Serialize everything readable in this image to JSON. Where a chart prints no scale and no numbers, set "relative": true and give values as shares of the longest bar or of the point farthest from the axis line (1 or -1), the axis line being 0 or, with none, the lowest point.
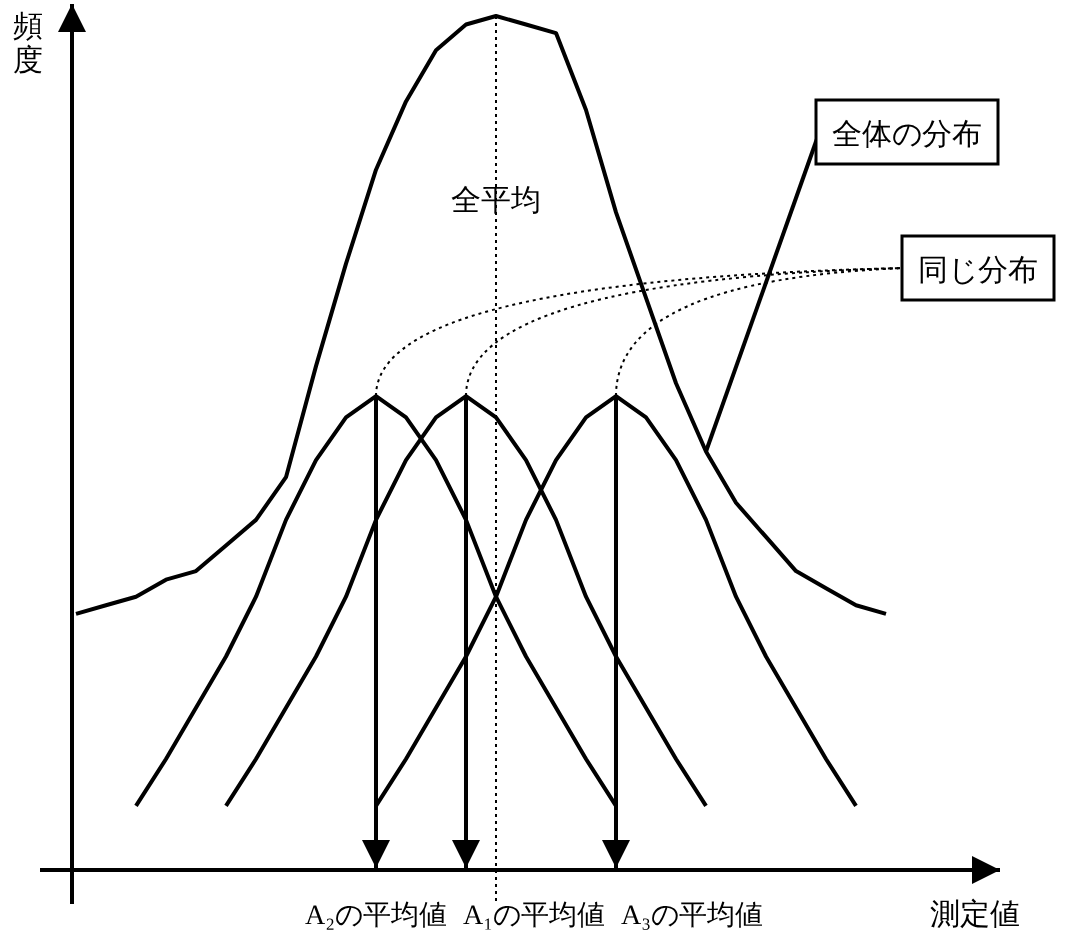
{
  "chart_data": {
    "type": "line",
    "relative": true,
    "xlabel": "測定値",
    "ylabel": "頻度",
    "line_style": "solid",
    "categories": [
      null,
      null,
      null,
      null,
      null,
      null,
      null,
      null,
      null,
      null,
      null,
      null,
      null,
      null,
      null,
      null,
      null,
      null,
      null,
      null,
      null,
      null,
      null,
      null,
      null,
      null,
      null,
      null
    ],
    "series": [
      {
        "color": "#000000",
        "values": [
          0.3,
          0.31,
          0.32,
          0.34,
          0.35,
          0.38,
          0.41,
          0.46,
          0.59,
          0.71,
          0.82,
          0.9,
          0.96,
          0.99,
          1,
          0.99,
          0.98,
          0.89,
          0.77,
          0.67,
          0.57,
          0.49,
          0.43,
          0.39,
          0.35,
          0.33,
          0.31,
          0.3
        ]
      },
      {
        "color": "#000000",
        "values": [
          null,
          null,
          0.075,
          0.13,
          0.19,
          0.25,
          0.32,
          0.41,
          0.48,
          0.53,
          0.555,
          0.53,
          0.48,
          0.41,
          0.32,
          0.25,
          0.19,
          0.13,
          0.075,
          null,
          null,
          null,
          null,
          null,
          null,
          null,
          null,
          null
        ]
      },
      {
        "color": "#000000",
        "values": [
          null,
          null,
          null,
          null,
          null,
          0.075,
          0.13,
          0.19,
          0.25,
          0.32,
          0.41,
          0.48,
          0.53,
          0.555,
          0.53,
          0.48,
          0.41,
          0.32,
          0.25,
          0.19,
          0.13,
          0.075,
          null,
          null,
          null,
          null,
          null,
          null
        ]
      },
      {
        "color": "#000000",
        "values": [
          null,
          null,
          null,
          null,
          null,
          null,
          null,
          null,
          null,
          null,
          0.075,
          0.13,
          0.19,
          0.25,
          0.32,
          0.41,
          0.48,
          0.53,
          0.555,
          0.53,
          0.48,
          0.41,
          0.32,
          0.25,
          0.19,
          0.13,
          0.075,
          null
        ]
      }
    ],
    "annotations": [
      "全平均",
      "全体の分布",
      "同じ分布",
      "A₂の平均値",
      "A₁の平均値",
      "A₃の平均値"
    ]
  }
}
